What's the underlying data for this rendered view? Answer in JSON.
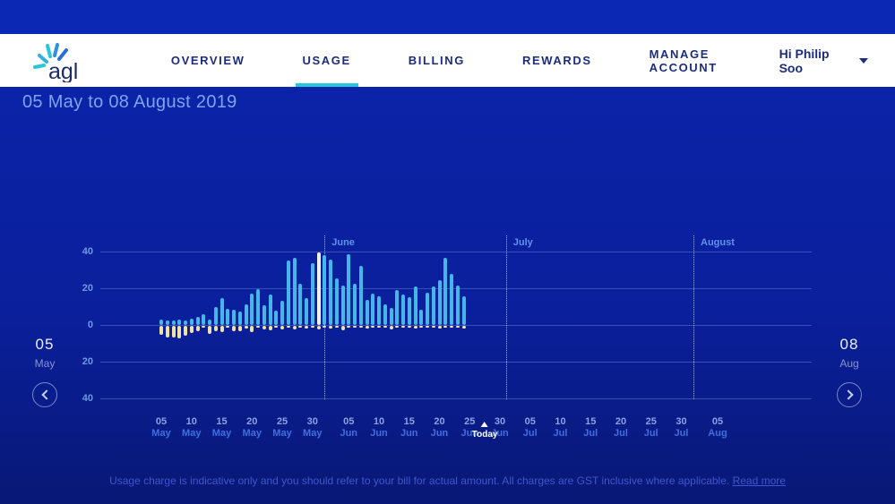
{
  "brand": {
    "logo_text": "agl"
  },
  "nav": {
    "items": [
      "OVERVIEW",
      "USAGE",
      "BILLING",
      "REWARDS",
      "MANAGE ACCOUNT"
    ],
    "active": "USAGE",
    "user_label": "Hi Philip Soo"
  },
  "page": {
    "title": "05 May to 08 August 2019"
  },
  "pager": {
    "left": {
      "day": "05",
      "month": "May"
    },
    "right": {
      "day": "08",
      "month": "Aug"
    }
  },
  "footer": {
    "text": "Usage charge is indicative only and you should refer to your bill for actual amount. All charges are GST inclusive where applicable.",
    "link_label": "Read more"
  },
  "colors": {
    "usage_bar": "#45b6e8",
    "export_bar": "#f0e2a6",
    "highlight_bar": "#f4efdc",
    "accent_teal": "#29c5da",
    "background": "#0b23a8"
  },
  "chart_data": {
    "type": "bar",
    "title": "05 May to 08 August 2019",
    "ylim": [
      -45,
      45
    ],
    "y_ticks": [
      40,
      20,
      0,
      -20,
      -40
    ],
    "y_tick_labels": [
      "40",
      "20",
      "0",
      "20",
      "40"
    ],
    "grid": true,
    "month_markers": [
      {
        "label": "June",
        "day_offset": 27
      },
      {
        "label": "July",
        "day_offset": 57
      },
      {
        "label": "August",
        "day_offset": 88
      }
    ],
    "today": {
      "label": "Today",
      "day_offset": 53.5
    },
    "x_tick_day_offsets": [
      0,
      5,
      10,
      15,
      20,
      25,
      31,
      36,
      41,
      46,
      51,
      56,
      61,
      66,
      71,
      76,
      81,
      86,
      92
    ],
    "x_tick_labels": [
      {
        "day": "05",
        "month": "May"
      },
      {
        "day": "10",
        "month": "May"
      },
      {
        "day": "15",
        "month": "May"
      },
      {
        "day": "20",
        "month": "May"
      },
      {
        "day": "25",
        "month": "May"
      },
      {
        "day": "30",
        "month": "May"
      },
      {
        "day": "05",
        "month": "Jun"
      },
      {
        "day": "10",
        "month": "Jun"
      },
      {
        "day": "15",
        "month": "Jun"
      },
      {
        "day": "20",
        "month": "Jun"
      },
      {
        "day": "25",
        "month": "Jun"
      },
      {
        "day": "30",
        "month": "Jun"
      },
      {
        "day": "05",
        "month": "Jul"
      },
      {
        "day": "10",
        "month": "Jul"
      },
      {
        "day": "15",
        "month": "Jul"
      },
      {
        "day": "20",
        "month": "Jul"
      },
      {
        "day": "25",
        "month": "Jul"
      },
      {
        "day": "30",
        "month": "Jul"
      },
      {
        "day": "05",
        "month": "Aug"
      }
    ],
    "dates": [
      "05 May",
      "06 May",
      "07 May",
      "08 May",
      "09 May",
      "10 May",
      "11 May",
      "12 May",
      "13 May",
      "14 May",
      "15 May",
      "16 May",
      "17 May",
      "18 May",
      "19 May",
      "20 May",
      "21 May",
      "22 May",
      "23 May",
      "24 May",
      "25 May",
      "26 May",
      "27 May",
      "28 May",
      "29 May",
      "30 May",
      "31 May",
      "01 Jun",
      "02 Jun",
      "03 Jun",
      "04 Jun",
      "05 Jun",
      "06 Jun",
      "07 Jun",
      "08 Jun",
      "09 Jun",
      "10 Jun",
      "11 Jun",
      "12 Jun",
      "13 Jun",
      "14 Jun",
      "15 Jun",
      "16 Jun",
      "17 Jun",
      "18 Jun",
      "19 Jun",
      "20 Jun",
      "21 Jun",
      "22 Jun",
      "23 Jun",
      "24 Jun"
    ],
    "series": [
      {
        "name": "usage",
        "values": [
          3,
          2.5,
          2.5,
          3,
          2.5,
          3.5,
          4.5,
          6,
          3,
          10,
          14.5,
          9,
          8.5,
          7.5,
          11,
          17,
          19.5,
          10.5,
          16.5,
          8,
          13,
          35,
          36.5,
          22.5,
          14.5,
          33.5,
          39.5,
          38,
          35.5,
          25.5,
          21.5,
          38.5,
          22.5,
          32,
          13.5,
          17,
          15.5,
          11,
          9.5,
          19,
          16.5,
          15,
          21,
          8.5,
          17.5,
          21,
          24.5,
          36.5,
          28,
          21.5,
          15.5
        ]
      },
      {
        "name": "solar_export",
        "values": [
          -5,
          -6.5,
          -6.5,
          -7,
          -5.5,
          -4,
          -3,
          -1,
          -4.5,
          -3,
          -3.5,
          -1,
          -3,
          -3,
          -1.5,
          -3.5,
          -1,
          -2,
          -2.5,
          -1,
          -2,
          -1,
          -2,
          -1,
          -1.5,
          -1,
          -2,
          -1,
          -1.5,
          -1,
          -2.5,
          -1,
          -1,
          -1,
          -1.5,
          -1,
          -1,
          -1,
          -2,
          -1,
          -1,
          -1,
          -1.5,
          -1,
          -1,
          -1,
          -1.5,
          -1,
          -1,
          -1,
          -1.5
        ]
      }
    ],
    "highlight_index": 26,
    "legend": "none"
  }
}
